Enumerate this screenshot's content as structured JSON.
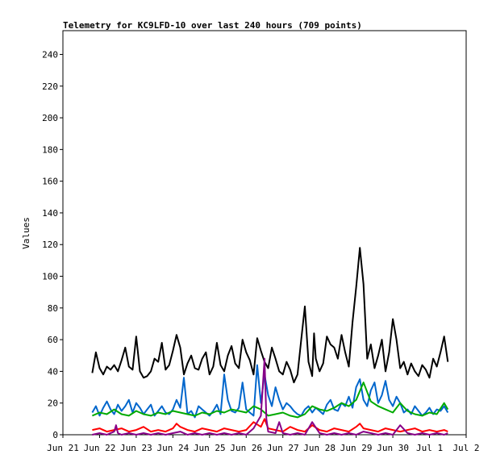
{
  "chart_data": {
    "type": "line",
    "title": "Telemetry for KC9LFD-10 over last 240 hours (709 points)",
    "xlabel": "",
    "ylabel": "Values",
    "ylim": [
      0,
      255
    ],
    "y_ticks": [
      0,
      20,
      40,
      60,
      80,
      100,
      120,
      140,
      160,
      180,
      200,
      220,
      240
    ],
    "x_range_days": [
      "Jun 21",
      "Jul 2"
    ],
    "x_tick_labels": [
      "Jun 21",
      "Jun 22",
      "Jun 23",
      "Jun 24",
      "Jun 25",
      "Jun 26",
      "Jun 27",
      "Jun 28",
      "Jun 29",
      "Jun 30",
      "Jul 1",
      "Jul 2"
    ],
    "grid": false,
    "legend": "none",
    "series": [
      {
        "color": "#000000",
        "x": [
          21.8,
          21.9,
          22.0,
          22.1,
          22.2,
          22.3,
          22.4,
          22.5,
          22.6,
          22.7,
          22.8,
          22.9,
          23.0,
          23.1,
          23.2,
          23.3,
          23.4,
          23.5,
          23.6,
          23.7,
          23.8,
          23.9,
          24.0,
          24.1,
          24.2,
          24.3,
          24.4,
          24.5,
          24.6,
          24.7,
          24.8,
          24.9,
          25.0,
          25.1,
          25.2,
          25.3,
          25.4,
          25.5,
          25.6,
          25.7,
          25.8,
          25.9,
          26.0,
          26.1,
          26.2,
          26.3,
          26.4,
          26.5,
          26.6,
          26.7,
          26.8,
          26.9,
          27.0,
          27.1,
          27.2,
          27.3,
          27.4,
          27.5,
          27.6,
          27.7,
          27.8,
          27.85,
          27.9,
          28.0,
          28.1,
          28.2,
          28.3,
          28.4,
          28.5,
          28.6,
          28.7,
          28.8,
          28.9,
          29.0,
          29.1,
          29.2,
          29.3,
          29.4,
          29.5,
          29.6,
          29.7,
          29.8,
          29.9,
          30.0,
          30.1,
          30.2,
          30.3,
          30.4,
          30.5,
          30.6,
          30.7,
          30.8,
          30.9,
          31.0,
          31.1,
          31.2,
          31.3,
          31.4,
          31.5
        ],
        "values": [
          39,
          52,
          42,
          38,
          43,
          41,
          44,
          40,
          47,
          55,
          43,
          41,
          62,
          40,
          36,
          37,
          40,
          48,
          46,
          58,
          41,
          44,
          53,
          63,
          55,
          38,
          45,
          50,
          42,
          41,
          48,
          52,
          38,
          43,
          58,
          44,
          40,
          50,
          56,
          45,
          42,
          60,
          52,
          47,
          38,
          61,
          53,
          46,
          42,
          55,
          48,
          40,
          38,
          46,
          41,
          33,
          38,
          60,
          81,
          46,
          37,
          64,
          48,
          40,
          45,
          62,
          57,
          55,
          48,
          63,
          52,
          43,
          71,
          93,
          118,
          95,
          48,
          57,
          42,
          50,
          60,
          40,
          52,
          73,
          60,
          42,
          46,
          38,
          45,
          40,
          37,
          44,
          41,
          36,
          48,
          43,
          52,
          62,
          46
        ]
      },
      {
        "color": "#0066cc",
        "x": [
          21.8,
          21.9,
          22.0,
          22.1,
          22.2,
          22.3,
          22.4,
          22.5,
          22.6,
          22.7,
          22.8,
          22.9,
          23.0,
          23.1,
          23.2,
          23.3,
          23.4,
          23.5,
          23.6,
          23.7,
          23.8,
          23.9,
          24.0,
          24.1,
          24.2,
          24.3,
          24.4,
          24.5,
          24.6,
          24.7,
          24.8,
          24.9,
          25.0,
          25.1,
          25.2,
          25.3,
          25.4,
          25.5,
          25.6,
          25.7,
          25.8,
          25.9,
          26.0,
          26.1,
          26.2,
          26.3,
          26.4,
          26.5,
          26.6,
          26.7,
          26.8,
          26.9,
          27.0,
          27.1,
          27.2,
          27.3,
          27.4,
          27.5,
          27.6,
          27.7,
          27.8,
          27.9,
          28.0,
          28.1,
          28.2,
          28.3,
          28.4,
          28.5,
          28.6,
          28.7,
          28.8,
          28.9,
          29.0,
          29.1,
          29.2,
          29.3,
          29.4,
          29.5,
          29.6,
          29.7,
          29.8,
          29.9,
          30.0,
          30.1,
          30.2,
          30.3,
          30.4,
          30.5,
          30.6,
          30.7,
          30.8,
          30.9,
          31.0,
          31.1,
          31.2,
          31.3,
          31.4,
          31.5
        ],
        "values": [
          14,
          18,
          12,
          17,
          21,
          16,
          13,
          19,
          15,
          18,
          22,
          14,
          20,
          17,
          13,
          16,
          19,
          12,
          15,
          18,
          14,
          13,
          16,
          22,
          17,
          36,
          13,
          15,
          11,
          18,
          16,
          14,
          12,
          15,
          19,
          13,
          38,
          22,
          15,
          14,
          17,
          33,
          16,
          14,
          12,
          44,
          20,
          38,
          25,
          18,
          30,
          22,
          16,
          20,
          18,
          15,
          13,
          12,
          16,
          18,
          14,
          17,
          15,
          13,
          19,
          22,
          16,
          15,
          20,
          18,
          24,
          17,
          30,
          35,
          22,
          18,
          28,
          33,
          20,
          25,
          34,
          22,
          18,
          24,
          20,
          14,
          16,
          13,
          18,
          15,
          12,
          14,
          17,
          13,
          16,
          15,
          18,
          14
        ]
      },
      {
        "color": "#00aa00",
        "x": [
          21.8,
          22.0,
          22.2,
          22.4,
          22.6,
          22.8,
          23.0,
          23.2,
          23.4,
          23.6,
          23.8,
          24.0,
          24.2,
          24.4,
          24.6,
          24.8,
          25.0,
          25.2,
          25.4,
          25.6,
          25.8,
          26.0,
          26.2,
          26.4,
          26.6,
          26.8,
          27.0,
          27.2,
          27.4,
          27.6,
          27.8,
          28.0,
          28.2,
          28.4,
          28.6,
          28.8,
          29.0,
          29.2,
          29.4,
          29.6,
          29.8,
          30.0,
          30.2,
          30.4,
          30.6,
          30.8,
          31.0,
          31.2,
          31.4,
          31.5
        ],
        "values": [
          12,
          14,
          13,
          16,
          13,
          12,
          15,
          13,
          12,
          14,
          13,
          15,
          14,
          13,
          12,
          14,
          13,
          15,
          14,
          16,
          15,
          14,
          18,
          16,
          12,
          13,
          14,
          12,
          11,
          13,
          18,
          16,
          15,
          17,
          20,
          18,
          22,
          33,
          21,
          18,
          16,
          14,
          20,
          15,
          13,
          12,
          14,
          13,
          20,
          16
        ]
      },
      {
        "color": "#ff0000",
        "x": [
          21.8,
          22.0,
          22.2,
          22.4,
          22.6,
          22.8,
          23.0,
          23.2,
          23.4,
          23.6,
          23.8,
          24.0,
          24.1,
          24.2,
          24.4,
          24.6,
          24.8,
          25.0,
          25.2,
          25.4,
          25.6,
          25.8,
          26.0,
          26.2,
          26.4,
          26.5,
          26.6,
          26.8,
          27.0,
          27.2,
          27.4,
          27.6,
          27.8,
          28.0,
          28.2,
          28.4,
          28.6,
          28.8,
          29.0,
          29.1,
          29.2,
          29.4,
          29.6,
          29.8,
          30.0,
          30.2,
          30.4,
          30.6,
          30.8,
          31.0,
          31.2,
          31.4,
          31.5
        ],
        "values": [
          3,
          4,
          2,
          3,
          4,
          2,
          3,
          5,
          2,
          3,
          2,
          4,
          7,
          5,
          3,
          2,
          4,
          3,
          2,
          4,
          3,
          2,
          3,
          8,
          5,
          10,
          4,
          3,
          2,
          5,
          3,
          2,
          6,
          3,
          2,
          4,
          3,
          2,
          5,
          7,
          4,
          3,
          2,
          4,
          3,
          2,
          3,
          4,
          2,
          3,
          2,
          3,
          2
        ]
      },
      {
        "color": "#880088",
        "x": [
          21.8,
          22.0,
          22.2,
          22.4,
          22.45,
          22.5,
          22.6,
          22.8,
          23.0,
          23.2,
          23.4,
          23.6,
          23.8,
          24.0,
          24.2,
          24.4,
          24.6,
          24.8,
          25.0,
          25.2,
          25.4,
          25.6,
          25.8,
          26.0,
          26.2,
          26.4,
          26.5,
          26.55,
          26.6,
          26.8,
          26.9,
          27.0,
          27.2,
          27.4,
          27.6,
          27.8,
          28.0,
          28.2,
          28.4,
          28.6,
          28.8,
          29.0,
          29.2,
          29.4,
          29.6,
          29.8,
          30.0,
          30.2,
          30.4,
          30.6,
          30.8,
          31.0,
          31.2,
          31.4,
          31.5
        ],
        "values": [
          0,
          1,
          0,
          2,
          6,
          1,
          0,
          1,
          0,
          1,
          0,
          1,
          0,
          1,
          2,
          0,
          1,
          0,
          1,
          0,
          1,
          0,
          1,
          0,
          4,
          12,
          48,
          10,
          2,
          1,
          8,
          1,
          0,
          1,
          0,
          8,
          1,
          0,
          1,
          0,
          1,
          0,
          2,
          1,
          0,
          1,
          0,
          6,
          1,
          0,
          1,
          0,
          1,
          0,
          1
        ]
      }
    ]
  }
}
